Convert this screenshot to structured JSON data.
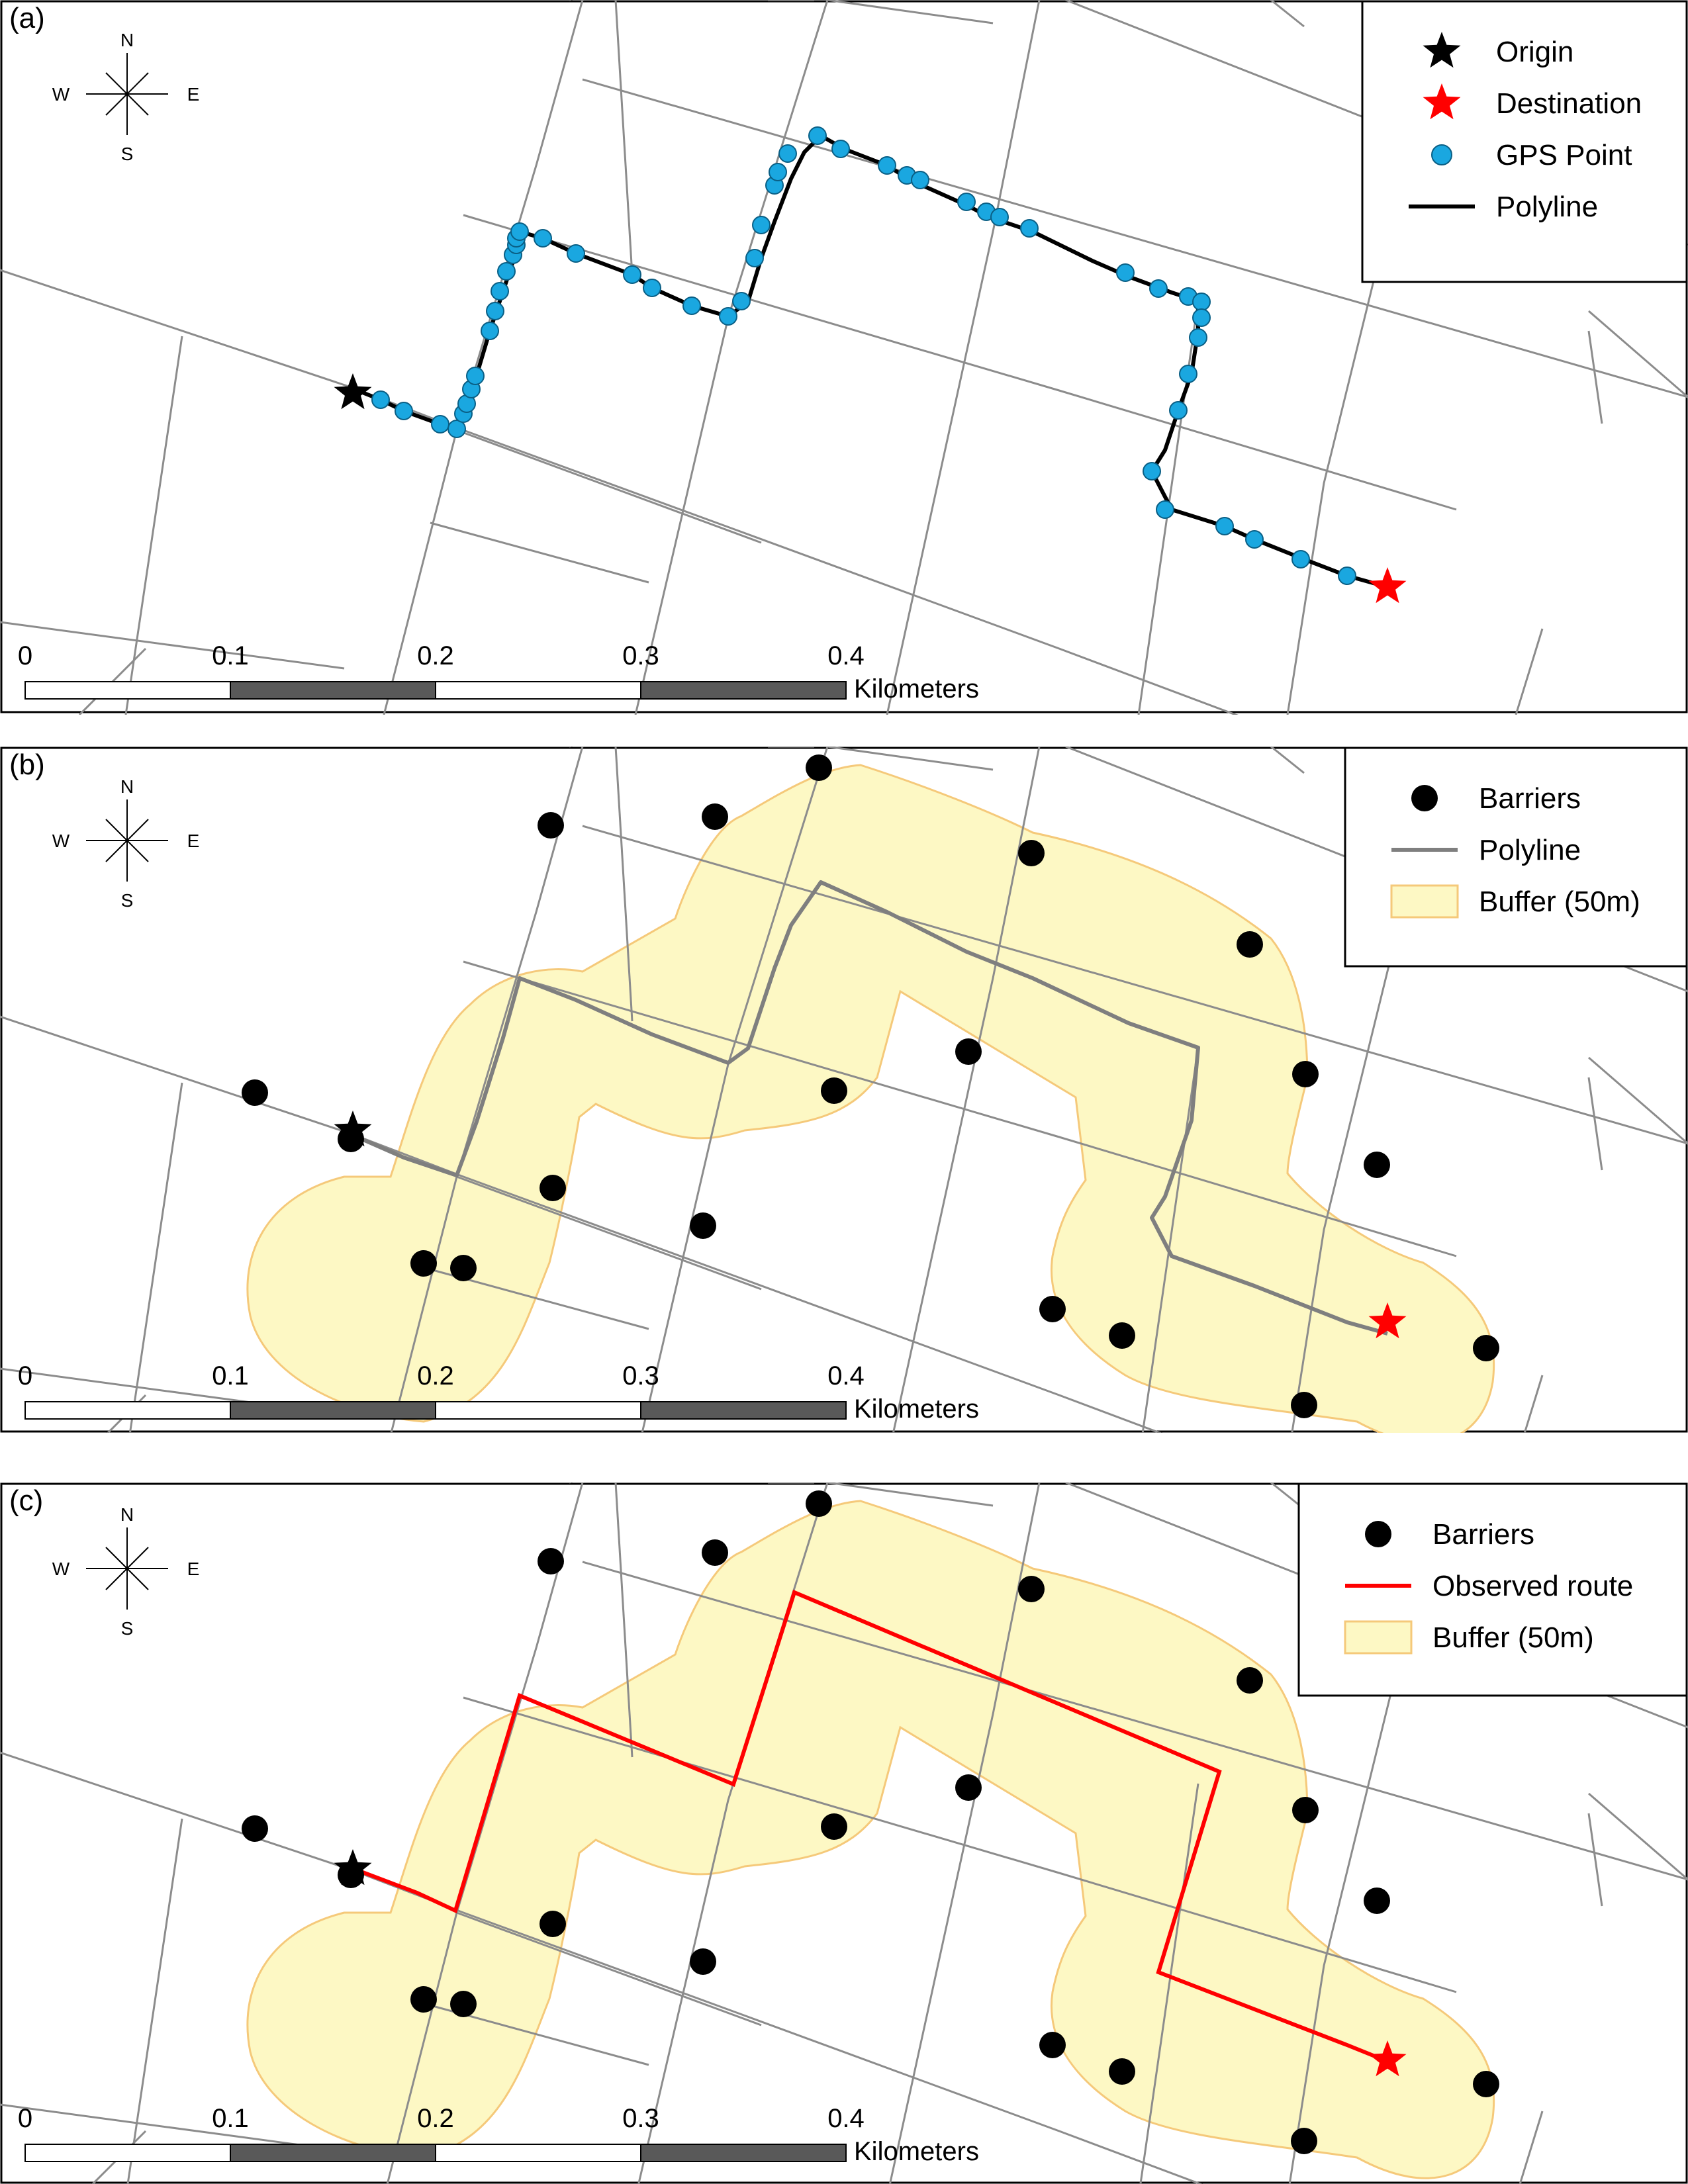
{
  "panels": [
    {
      "label": "(a)",
      "legend": [
        {
          "symbol": "star-black",
          "label": "Origin"
        },
        {
          "symbol": "star-red",
          "label": "Destination"
        },
        {
          "symbol": "dot-blue",
          "label": "GPS Point"
        },
        {
          "symbol": "line-black",
          "label": "Polyline"
        }
      ]
    },
    {
      "label": "(b)",
      "legend": [
        {
          "symbol": "dot-black",
          "label": "Barriers"
        },
        {
          "symbol": "line-gray",
          "label": "Polyline"
        },
        {
          "symbol": "buffer",
          "label": "Buffer (50m)"
        }
      ]
    },
    {
      "label": "(c)",
      "legend": [
        {
          "symbol": "dot-black",
          "label": "Barriers"
        },
        {
          "symbol": "line-red",
          "label": "Observed route"
        },
        {
          "symbol": "buffer",
          "label": "Buffer (50m)"
        }
      ]
    }
  ],
  "compass": {
    "n": "N",
    "s": "S",
    "e": "E",
    "w": "W"
  },
  "scalebar": {
    "ticks": [
      "0",
      "0.1",
      "0.2",
      "0.3",
      "0.4"
    ],
    "unit": "Kilometers"
  },
  "colors": {
    "road": "#8c8c8c",
    "gps": "#1aa7e0",
    "buffer_fill": "#fdf8c4",
    "buffer_stroke": "#f5c97a",
    "route": "#ff0000",
    "polyline_gray": "#7f7f7f",
    "destination": "#ff0000",
    "origin": "#000000",
    "scale_dark": "#595959"
  }
}
